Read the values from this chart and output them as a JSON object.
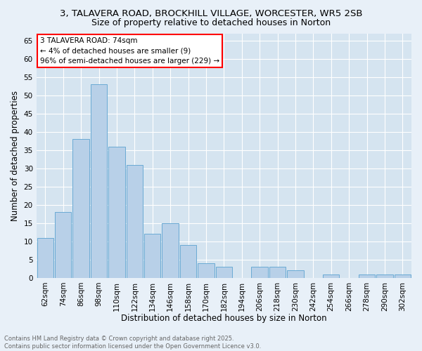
{
  "title1": "3, TALAVERA ROAD, BROCKHILL VILLAGE, WORCESTER, WR5 2SB",
  "title2": "Size of property relative to detached houses in Norton",
  "xlabel": "Distribution of detached houses by size in Norton",
  "ylabel": "Number of detached properties",
  "bar_color": "#b8d0e8",
  "bar_edge_color": "#6aaad4",
  "categories": [
    "62sqm",
    "74sqm",
    "86sqm",
    "98sqm",
    "110sqm",
    "122sqm",
    "134sqm",
    "146sqm",
    "158sqm",
    "170sqm",
    "182sqm",
    "194sqm",
    "206sqm",
    "218sqm",
    "230sqm",
    "242sqm",
    "254sqm",
    "266sqm",
    "278sqm",
    "290sqm",
    "302sqm"
  ],
  "values": [
    11,
    18,
    38,
    53,
    36,
    31,
    12,
    15,
    9,
    4,
    3,
    0,
    3,
    3,
    2,
    0,
    1,
    0,
    1,
    1,
    1
  ],
  "ylim": [
    0,
    67
  ],
  "yticks": [
    0,
    5,
    10,
    15,
    20,
    25,
    30,
    35,
    40,
    45,
    50,
    55,
    60,
    65
  ],
  "annotation_text": "3 TALAVERA ROAD: 74sqm\n← 4% of detached houses are smaller (9)\n96% of semi-detached houses are larger (229) →",
  "bg_color": "#e8f0f8",
  "plot_bg_color": "#d5e4f0",
  "grid_color": "#ffffff",
  "footer_text": "Contains HM Land Registry data © Crown copyright and database right 2025.\nContains public sector information licensed under the Open Government Licence v3.0.",
  "title1_fontsize": 9.5,
  "title2_fontsize": 9,
  "tick_fontsize": 7.5,
  "ylabel_fontsize": 8.5,
  "xlabel_fontsize": 8.5,
  "footer_fontsize": 6,
  "annotation_fontsize": 7.5
}
